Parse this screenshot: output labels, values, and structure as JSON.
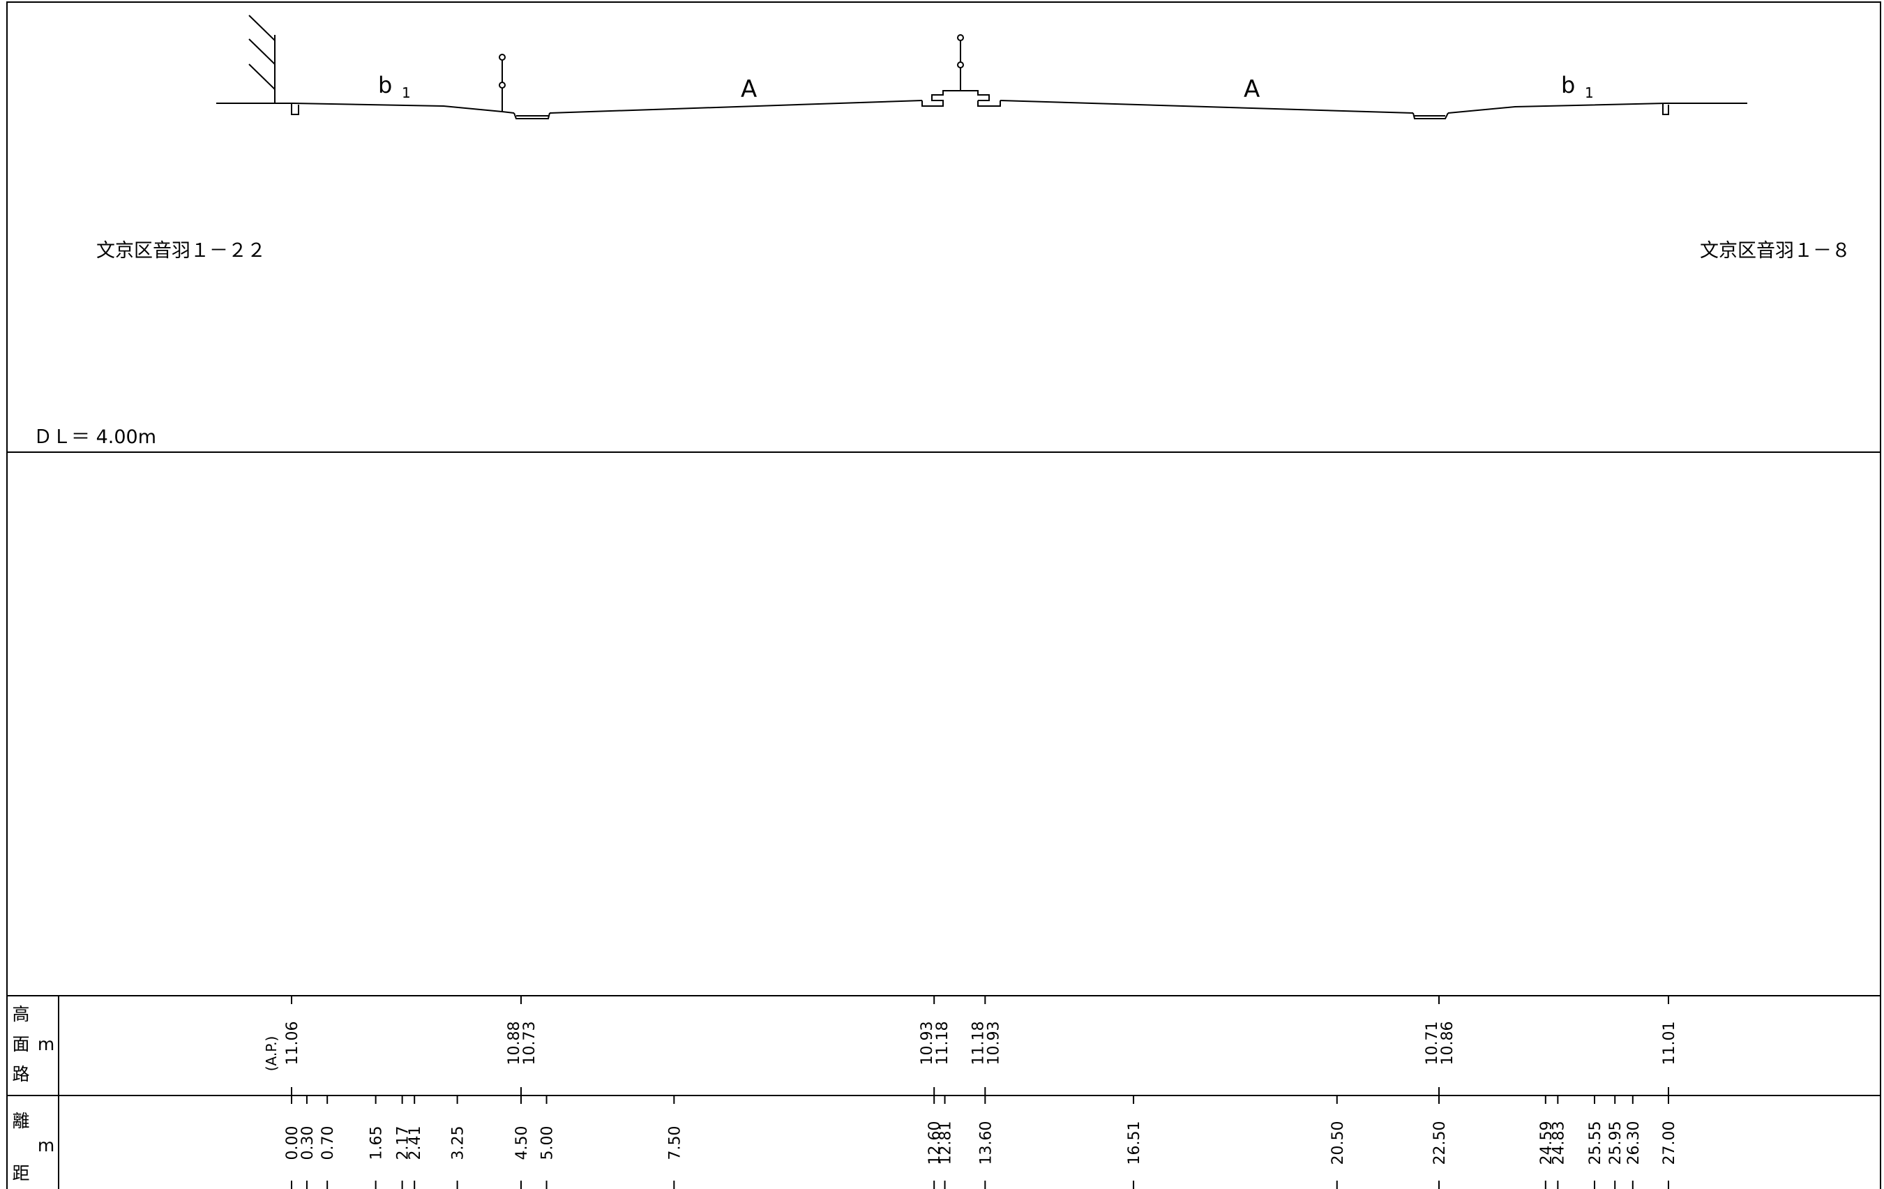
{
  "profile": {
    "lane_labels": {
      "left_sidewalk": "b",
      "left_sidewalk_sub": "1",
      "left_carriageway": "A",
      "right_carriageway": "A",
      "right_sidewalk": "b",
      "right_sidewalk_sub": "1"
    },
    "left_address": "文京区音羽１－２２",
    "right_address": "文京区音羽１－８",
    "datum_level": "ＤＬ＝ 4.00m"
  },
  "table": {
    "elevation_header": "路面高",
    "elevation_unit": "m",
    "ap_note": "(A.P.)",
    "distance_header": "距離",
    "distance_unit": "m",
    "elevation_groups": [
      {
        "distance": 0.0,
        "labels": [
          "11.06"
        ]
      },
      {
        "distance": 4.5,
        "labels": [
          "10.88",
          "10.73"
        ]
      },
      {
        "distance": 12.6,
        "labels": [
          "10.93",
          "11.18"
        ]
      },
      {
        "distance": 13.6,
        "labels": [
          "11.18",
          "10.93"
        ]
      },
      {
        "distance": 22.5,
        "labels": [
          "10.71",
          "10.86"
        ]
      },
      {
        "distance": 27.0,
        "labels": [
          "11.01"
        ]
      }
    ],
    "distances": [
      "0.00",
      "0.30",
      "0.70",
      "1.65",
      "2.17",
      "2.41",
      "3.25",
      "4.50",
      "5.00",
      "7.50",
      "12.60",
      "12.81",
      "13.60",
      "16.51",
      "20.50",
      "22.50",
      "24.59",
      "24.83",
      "25.55",
      "25.95",
      "26.30",
      "27.00"
    ]
  }
}
